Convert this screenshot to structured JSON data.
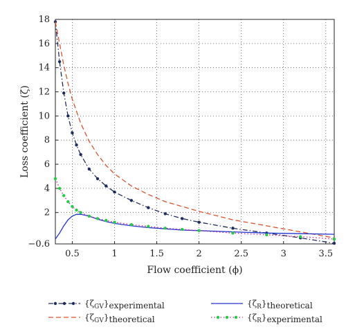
{
  "chart_data": {
    "type": "line",
    "xlabel": "Flow coefficient (ϕ)",
    "ylabel": "Loss coefficient (ζ)",
    "xlim": [
      0.3,
      3.6
    ],
    "ylim": [
      -0.6,
      18
    ],
    "xticks": [
      0.5,
      1,
      1.5,
      2,
      2.5,
      3,
      3.5
    ],
    "yticks": [
      -0.6,
      2,
      4,
      6,
      8,
      10,
      12,
      14,
      16,
      18
    ],
    "grid": true,
    "legend_position": "bottom",
    "series": [
      {
        "name": "{ζGV}experimental",
        "legend_main": "{ζ",
        "legend_greek_sub": "GV",
        "legend_close": "}",
        "legend_sub": "experimental",
        "color": "#1f2d5c",
        "style": "dashdot",
        "marker": "dot",
        "x": [
          0.3,
          0.35,
          0.4,
          0.45,
          0.5,
          0.55,
          0.6,
          0.7,
          0.8,
          0.9,
          1.0,
          1.2,
          1.4,
          1.6,
          1.8,
          2.0,
          2.4,
          2.8,
          3.2,
          3.6
        ],
        "y": [
          17.8,
          14.5,
          11.9,
          10.0,
          8.6,
          7.6,
          6.8,
          5.6,
          4.8,
          4.2,
          3.7,
          3.0,
          2.4,
          1.9,
          1.5,
          1.2,
          0.7,
          0.3,
          -0.1,
          -0.55
        ]
      },
      {
        "name": "{ζGV}theoretical",
        "legend_main": "{ζ",
        "legend_greek_sub": "GV",
        "legend_close": "}",
        "legend_sub": "theoretical",
        "color": "#d9532b",
        "style": "dashed",
        "marker": "none",
        "x": [
          0.3,
          0.35,
          0.4,
          0.45,
          0.5,
          0.6,
          0.7,
          0.8,
          0.9,
          1.0,
          1.2,
          1.4,
          1.6,
          1.8,
          2.0,
          2.4,
          2.8,
          3.2,
          3.6
        ],
        "y": [
          17.8,
          16.0,
          14.2,
          12.7,
          11.4,
          9.4,
          7.9,
          6.8,
          5.9,
          5.2,
          4.2,
          3.5,
          2.9,
          2.5,
          2.1,
          1.4,
          0.9,
          0.4,
          -0.1
        ]
      },
      {
        "name": "{ζR}theoretical",
        "legend_main": "{ζ",
        "legend_greek_sub": "R",
        "legend_close": "}",
        "legend_sub": "theoretical",
        "color": "#2233cc",
        "style": "solid",
        "marker": "none",
        "x": [
          0.3,
          0.35,
          0.4,
          0.45,
          0.5,
          0.55,
          0.6,
          0.7,
          0.8,
          0.9,
          1.0,
          1.2,
          1.4,
          1.6,
          1.8,
          2.0,
          2.4,
          2.8,
          3.2,
          3.6
        ],
        "y": [
          -0.2,
          0.3,
          0.9,
          1.4,
          1.7,
          1.85,
          1.85,
          1.7,
          1.45,
          1.25,
          1.1,
          0.9,
          0.75,
          0.65,
          0.55,
          0.5,
          0.4,
          0.3,
          0.25,
          0.2
        ]
      },
      {
        "name": "{ζR}experimental",
        "legend_main": "{ζ",
        "legend_greek_sub": "R",
        "legend_close": "}",
        "legend_sub": "experimental",
        "color": "#22cc44",
        "marker_color": "#22cc44",
        "line_color": "#cc2299",
        "style": "dotted",
        "marker": "dot",
        "x": [
          0.3,
          0.35,
          0.4,
          0.45,
          0.5,
          0.55,
          0.6,
          0.7,
          0.8,
          0.9,
          1.0,
          1.2,
          1.4,
          1.6,
          1.8,
          2.0,
          2.4,
          2.8,
          3.2,
          3.6
        ],
        "y": [
          4.8,
          4.0,
          3.4,
          2.9,
          2.5,
          2.2,
          2.0,
          1.7,
          1.5,
          1.35,
          1.2,
          1.0,
          0.85,
          0.7,
          0.6,
          0.5,
          0.3,
          0.15,
          0.0,
          -0.2
        ]
      }
    ]
  }
}
